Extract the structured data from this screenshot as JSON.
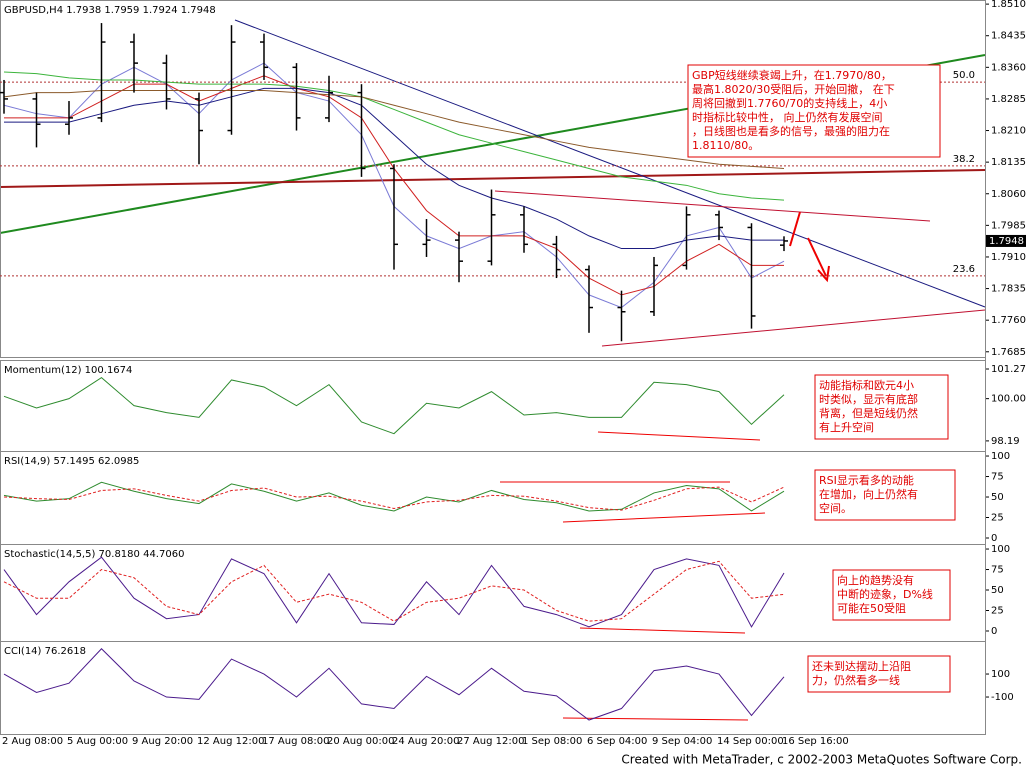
{
  "chart_data": [
    {
      "type": "ohlc",
      "title": "GBPUSD,H4 1.7938 1.7959 1.7924 1.7948",
      "ohlc": [
        [
          1.83,
          1.833,
          1.825,
          1.8285
        ],
        [
          1.8285,
          1.83,
          1.817,
          1.8225
        ],
        [
          1.8225,
          1.828,
          1.82,
          1.824
        ],
        [
          1.824,
          1.8465,
          1.823,
          1.842
        ],
        [
          1.842,
          1.844,
          1.83,
          1.837
        ],
        [
          1.837,
          1.839,
          1.826,
          1.8285
        ],
        [
          1.8285,
          1.83,
          1.813,
          1.821
        ],
        [
          1.821,
          1.846,
          1.82,
          1.842
        ],
        [
          1.842,
          1.844,
          1.833,
          1.836
        ],
        [
          1.836,
          1.837,
          1.821,
          1.824
        ],
        [
          1.824,
          1.834,
          1.823,
          1.83
        ],
        [
          1.83,
          1.832,
          1.81,
          1.812
        ],
        [
          1.812,
          1.813,
          1.788,
          1.794
        ],
        [
          1.794,
          1.8,
          1.791,
          1.795
        ],
        [
          1.795,
          1.797,
          1.785,
          1.79
        ],
        [
          1.79,
          1.807,
          1.789,
          1.801
        ],
        [
          1.801,
          1.803,
          1.792,
          1.794
        ],
        [
          1.794,
          1.796,
          1.786,
          1.788
        ],
        [
          1.788,
          1.789,
          1.773,
          1.779
        ],
        [
          1.779,
          1.783,
          1.771,
          1.778
        ],
        [
          1.778,
          1.791,
          1.777,
          1.789
        ],
        [
          1.789,
          1.803,
          1.788,
          1.801
        ],
        [
          1.801,
          1.802,
          1.795,
          1.798
        ],
        [
          1.798,
          1.799,
          1.774,
          1.777
        ],
        [
          1.7938,
          1.7959,
          1.7924,
          1.7948
        ]
      ],
      "bar_color": "#000000",
      "series": [
        {
          "color": "#7b7bd6",
          "values": [
            1.827,
            1.825,
            1.824,
            1.832,
            1.836,
            1.832,
            1.825,
            1.833,
            1.837,
            1.83,
            1.828,
            1.82,
            1.803,
            1.796,
            1.793,
            1.796,
            1.797,
            1.791,
            1.782,
            1.779,
            1.785,
            1.796,
            1.798,
            1.786,
            1.79
          ]
        },
        {
          "color": "#d02020",
          "values": [
            1.824,
            1.824,
            1.824,
            1.828,
            1.832,
            1.832,
            1.828,
            1.831,
            1.834,
            1.831,
            1.829,
            1.824,
            1.812,
            1.802,
            1.796,
            1.796,
            1.796,
            1.793,
            1.786,
            1.782,
            1.784,
            1.79,
            1.794,
            1.789,
            1.789
          ]
        },
        {
          "color": "#1a1a80",
          "values": [
            1.823,
            1.823,
            1.823,
            1.825,
            1.827,
            1.828,
            1.827,
            1.829,
            1.831,
            1.831,
            1.83,
            1.827,
            1.82,
            1.813,
            1.808,
            1.805,
            1.803,
            1.8,
            1.796,
            1.793,
            1.793,
            1.795,
            1.796,
            1.795,
            1.795
          ]
        },
        {
          "color": "#3cb43c",
          "values": [
            1.8349,
            1.8345,
            1.8335,
            1.833,
            1.833,
            1.8325,
            1.832,
            1.832,
            1.832,
            1.8315,
            1.8305,
            1.829,
            1.826,
            1.823,
            1.82,
            1.818,
            1.816,
            1.814,
            1.812,
            1.81,
            1.809,
            1.808,
            1.806,
            1.805,
            1.8045
          ]
        },
        {
          "color": "#8b5a2b",
          "values": [
            1.829,
            1.83,
            1.83,
            1.8305,
            1.8305,
            1.8305,
            1.8305,
            1.8305,
            1.8305,
            1.83,
            1.8295,
            1.829,
            1.827,
            1.825,
            1.823,
            1.8215,
            1.82,
            1.8185,
            1.817,
            1.816,
            1.815,
            1.814,
            1.813,
            1.8125,
            1.812
          ]
        }
      ],
      "ylim": [
        1.7675,
        1.8515
      ],
      "yticks": [
        {
          "value": 1.851,
          "label": "1.8510"
        },
        {
          "value": 1.8435,
          "label": "1.8435"
        },
        {
          "value": 1.836,
          "label": "1.8360"
        },
        {
          "value": 1.8285,
          "label": "1.8285"
        },
        {
          "value": 1.821,
          "label": "1.8210"
        },
        {
          "value": 1.8135,
          "label": "1.8135"
        },
        {
          "value": 1.806,
          "label": "1.8060"
        },
        {
          "value": 1.7985,
          "label": "1.7985"
        },
        {
          "value": 1.791,
          "label": "1.7910"
        },
        {
          "value": 1.7835,
          "label": "1.7835"
        },
        {
          "value": 1.776,
          "label": "1.7760"
        },
        {
          "value": 1.7685,
          "label": "1.7685"
        }
      ],
      "fib_levels": [
        {
          "label": "50.0",
          "value": 1.8325
        },
        {
          "label": "38.2",
          "value": 1.8126
        },
        {
          "label": "23.6",
          "value": 1.7865
        }
      ],
      "annotation": [
        "GBP短线继续衰竭上升，在1.7970/80，",
        "最高1.8020/30受阻后，开始回撤， 在下",
        "周将回撤到1.7760/70的支持线上，4小",
        "时指标比较中性， 向上仍然有发展空间",
        "，日线图也是看多的信号，最强的阻力在",
        "1.8110/80。"
      ]
    },
    {
      "type": "line",
      "title": "Momentum(12) 100.1674",
      "series": [
        {
          "color": "#2e8b2e",
          "values": [
            100.1,
            99.6,
            100,
            100.9,
            99.7,
            99.4,
            99.2,
            100.8,
            100.5,
            99.7,
            100.6,
            99,
            98.5,
            99.8,
            99.6,
            100.3,
            99.3,
            99.4,
            99.2,
            99.2,
            100.7,
            100.6,
            100.3,
            98.9,
            100.1674
          ]
        }
      ],
      "ylim": [
        97.8,
        101.57
      ],
      "yticks": [
        101.27,
        {
          "value": 100,
          "label": "100.00"
        },
        98.19
      ],
      "annotation": [
        "动能指标和欧元4小",
        "时类似，显示有底部",
        "背离，但是短线仍然",
        "有上升空间"
      ]
    },
    {
      "type": "line",
      "title": "RSI(14,9) 57.1495 62.0985",
      "series": [
        {
          "color": "#2e8b2e",
          "values": [
            52,
            45,
            48,
            68,
            57,
            48,
            42,
            66,
            57,
            45,
            55,
            40,
            33,
            50,
            44,
            58,
            47,
            43,
            33,
            35,
            55,
            64,
            60,
            33,
            57.1495
          ]
        },
        {
          "color": "#e02020",
          "dashed": true,
          "values": [
            50,
            48,
            47,
            58,
            60,
            52,
            45,
            58,
            61,
            50,
            51,
            45,
            36,
            44,
            46,
            52,
            51,
            45,
            37,
            34,
            46,
            60,
            62,
            44,
            62.0985
          ]
        }
      ],
      "ylim": [
        -6.1,
        103.7
      ],
      "yticks": [
        100,
        75,
        50,
        25,
        0
      ],
      "annotation": [
        "RSI显示看多的动能",
        "在增加，向上仍然有",
        "空间。"
      ]
    },
    {
      "type": "line",
      "title": "Stochastic(14,5,5) 70.8180 44.7060",
      "series": [
        {
          "color": "#4b1b8c",
          "values": [
            75,
            20,
            60,
            90,
            40,
            15,
            20,
            88,
            70,
            10,
            70,
            10,
            8,
            60,
            20,
            80,
            30,
            20,
            5,
            20,
            75,
            88,
            80,
            5,
            70.818
          ]
        },
        {
          "color": "#e02020",
          "dashed": true,
          "values": [
            60,
            40,
            40,
            75,
            65,
            30,
            20,
            60,
            80,
            35,
            45,
            35,
            12,
            35,
            40,
            55,
            50,
            25,
            12,
            15,
            45,
            75,
            85,
            40,
            44.706
          ]
        }
      ],
      "ylim": [
        -11,
        103.7
      ],
      "yticks": [
        100,
        75,
        50,
        25,
        0
      ],
      "annotation": [
        "向上的趋势没有",
        "中断的迹象，D%线",
        "可能在50受阻"
      ]
    },
    {
      "type": "line",
      "title": "CCI(14) 76.2618",
      "series": [
        {
          "color": "#4b1b8c",
          "values": [
            100,
            -60,
            20,
            320,
            40,
            -100,
            -120,
            230,
            100,
            -100,
            150,
            -160,
            -200,
            80,
            -80,
            150,
            -50,
            -90,
            -300,
            -200,
            130,
            170,
            100,
            -260,
            76.2618
          ]
        }
      ],
      "ylim": [
        -413,
        370
      ],
      "yticks": [
        100,
        -100
      ],
      "annotation": [
        "还未到达摆动上沿阻",
        "力，仍然看多一线"
      ],
      "categories": [
        "2 Aug 08:00",
        null,
        "5 Aug 00:00",
        null,
        "9 Aug 20:00",
        null,
        "12 Aug 12:00",
        null,
        "17 Aug 08:00",
        null,
        "20 Aug 00:00",
        null,
        "24 Aug 20:00",
        null,
        "27 Aug 12:00",
        null,
        "1 Sep 08:00",
        null,
        "6 Sep 04:00",
        null,
        "9 Sep 04:00",
        null,
        "14 Sep 00:00",
        null,
        "16 Sep 16:00"
      ]
    }
  ],
  "footer": "Created with MetaTrader, c 2002-2003 MetaQuotes Software Corp."
}
